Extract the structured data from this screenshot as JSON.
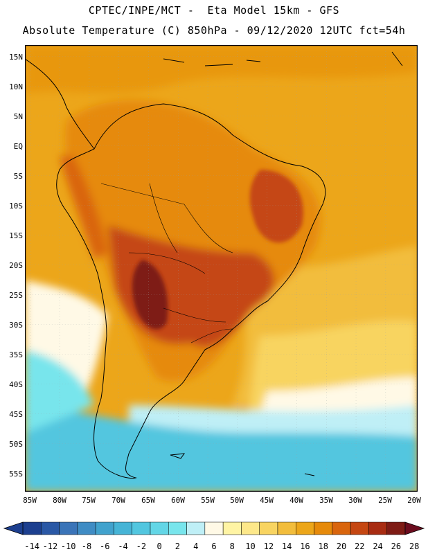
{
  "header": {
    "line1": "CPTEC/INPE/MCT -  Eta Model 15km - GFS",
    "line2": "Absolute Temperature (C) 850hPa - 09/12/2020 12UTC fct=54h"
  },
  "axes": {
    "lat_labels": [
      "15N",
      "10N",
      "5N",
      "EQ",
      "5S",
      "10S",
      "15S",
      "20S",
      "25S",
      "30S",
      "35S",
      "40S",
      "45S",
      "50S",
      "55S"
    ],
    "lon_labels": [
      "85W",
      "80W",
      "75W",
      "70W",
      "65W",
      "60W",
      "55W",
      "50W",
      "45W",
      "40W",
      "35W",
      "30W",
      "25W",
      "20W"
    ]
  },
  "colorbar": {
    "labels": [
      "-14",
      "-12",
      "-10",
      "-8",
      "-6",
      "-4",
      "-2",
      "0",
      "2",
      "4",
      "6",
      "8",
      "10",
      "12",
      "14",
      "16",
      "18",
      "20",
      "22",
      "24",
      "26",
      "28"
    ],
    "colors": [
      "#1c3f8f",
      "#2a58a5",
      "#3a74b8",
      "#3f8cc4",
      "#41a2cd",
      "#46b4d6",
      "#52c6df",
      "#63d6e6",
      "#78e5ec",
      "#bfeff6",
      "#fff9e6",
      "#fff4a4",
      "#fde88a",
      "#f8d461",
      "#f2bd3c",
      "#eca61a",
      "#e68a0a",
      "#d9650d",
      "#c54712",
      "#a82c12",
      "#7e1b15"
    ],
    "under": "#1c3f8f",
    "over": "#6b0c1e"
  },
  "map": {
    "sea_base": "#eca61a",
    "land_base": "#e68a0a",
    "hot_core": "#7e1b15",
    "cold_south": "#52c6df"
  }
}
